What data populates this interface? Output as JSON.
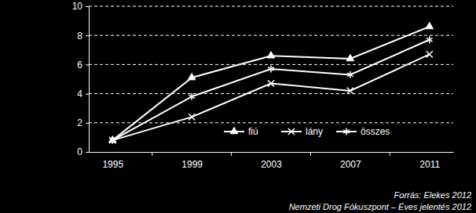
{
  "chart_data": {
    "type": "line",
    "categories": [
      "1995",
      "1999",
      "2003",
      "2007",
      "2011"
    ],
    "series": [
      {
        "name": "fiú",
        "color": "#ffffff",
        "marker": "triangle",
        "values": [
          0.8,
          5.1,
          6.6,
          6.4,
          8.6
        ]
      },
      {
        "name": "lány",
        "color": "#ffffff",
        "marker": "x",
        "values": [
          0.8,
          2.4,
          4.7,
          4.2,
          6.7
        ]
      },
      {
        "name": "összes",
        "color": "#ffffff",
        "marker": "asterisk",
        "values": [
          0.8,
          3.8,
          5.7,
          5.3,
          7.7
        ]
      }
    ],
    "ylim": [
      0,
      10
    ],
    "yticks": [
      0,
      2,
      4,
      6,
      8,
      10
    ],
    "grid": true,
    "legend": "bottom-right",
    "annotations": [
      "Forrás: Elekes 2012",
      "Nemzeti Drog Fókuszpont – Éves jelentés 2012"
    ]
  }
}
